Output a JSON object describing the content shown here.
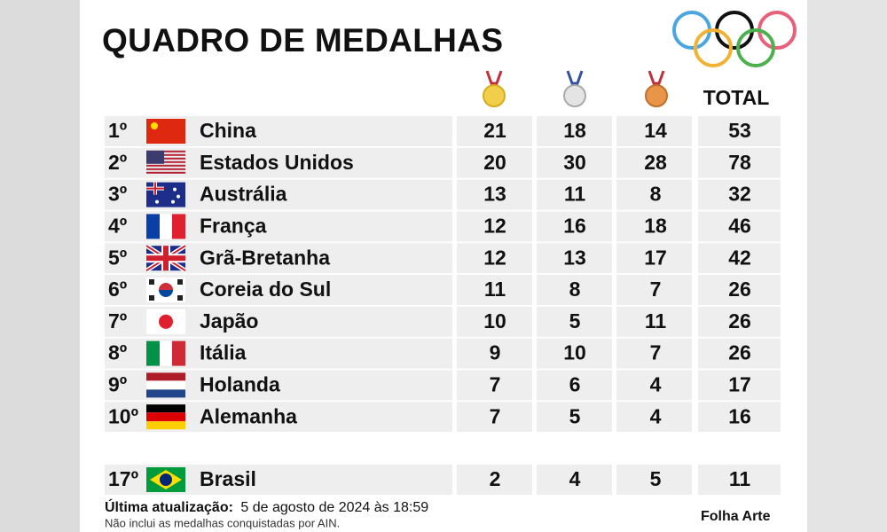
{
  "header": {
    "title": "QUADRO DE MEDALHAS",
    "total_label": "TOTAL"
  },
  "table": {
    "rows": [
      [
        "1º",
        "China",
        21,
        18,
        14,
        53
      ],
      [
        "2º",
        "Estados Unidos",
        20,
        30,
        28,
        78
      ],
      [
        "3º",
        "Austrália",
        13,
        11,
        8,
        32
      ],
      [
        "4º",
        "França",
        12,
        16,
        18,
        46
      ],
      [
        "5º",
        "Grã-Bretanha",
        12,
        13,
        17,
        42
      ],
      [
        "6º",
        "Coreia do Sul",
        11,
        8,
        7,
        26
      ],
      [
        "7º",
        "Japão",
        10,
        5,
        11,
        26
      ],
      [
        "8º",
        "Itália",
        9,
        10,
        7,
        26
      ],
      [
        "9º",
        "Holanda",
        7,
        6,
        4,
        17
      ],
      [
        "10º",
        "Alemanha",
        7,
        5,
        4,
        16
      ]
    ],
    "featured_row": [
      "17º",
      "Brasil",
      2,
      4,
      5,
      11
    ]
  },
  "footer": {
    "updated_label": "Última atualização:",
    "updated_value": "5 de agosto de 2024 às 18:59",
    "note": "Não inclui as medalhas conquistadas por AIN.",
    "credit": "Folha Arte"
  }
}
